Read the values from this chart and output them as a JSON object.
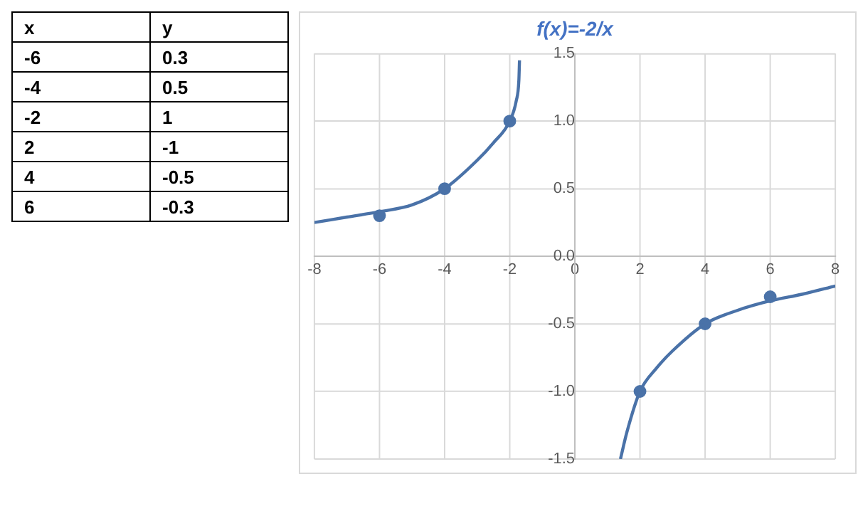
{
  "chart_data": {
    "type": "scatter",
    "title": "f(x)=-2/x",
    "series": [
      {
        "type": "line",
        "color": "#4a72a8",
        "marker": "none",
        "x": [
          -8,
          -7,
          -6,
          -5,
          -4,
          -3,
          -2.5,
          -2,
          -1.8,
          -1.72,
          -1.7,
          0,
          1.4,
          1.6,
          2,
          2.5,
          3,
          4,
          5,
          6,
          7,
          8
        ],
        "values": [
          0.25,
          0.29,
          0.33,
          0.38,
          0.5,
          0.71,
          0.84,
          1.0,
          1.15,
          1.3,
          1.45,
          null,
          -1.5,
          -1.3,
          -1.0,
          -0.83,
          -0.7,
          -0.5,
          -0.4,
          -0.33,
          -0.28,
          -0.22
        ]
      },
      {
        "type": "scatter",
        "color": "#4a72a8",
        "marker": "circle",
        "x": [
          -6,
          -4,
          -2,
          2,
          4,
          6
        ],
        "values": [
          0.3,
          0.5,
          1,
          -1,
          -0.5,
          -0.3
        ]
      }
    ],
    "annotations": [
      "x",
      "y",
      "-6",
      "0.3",
      "-4",
      "0.5",
      "-2",
      "1",
      "2",
      "-1",
      "4",
      "-0.5",
      "6",
      "-0.3"
    ],
    "xlim": [
      -8,
      8
    ],
    "xticks": [
      -8,
      -6,
      -4,
      -2,
      0,
      2,
      4,
      6,
      8
    ],
    "ylim": [
      -1.5,
      1.5
    ],
    "yticks": [
      {
        "value": -1.5,
        "label": "-1.5"
      },
      {
        "value": -1,
        "label": "-1.0"
      },
      {
        "value": -0.5,
        "label": "-0.5"
      },
      {
        "value": 0,
        "label": "0.0"
      },
      {
        "value": 0.5,
        "label": "0.5"
      },
      {
        "value": 1,
        "label": "1.0"
      },
      {
        "value": 1.5,
        "label": "1.5"
      }
    ],
    "grid": true
  }
}
